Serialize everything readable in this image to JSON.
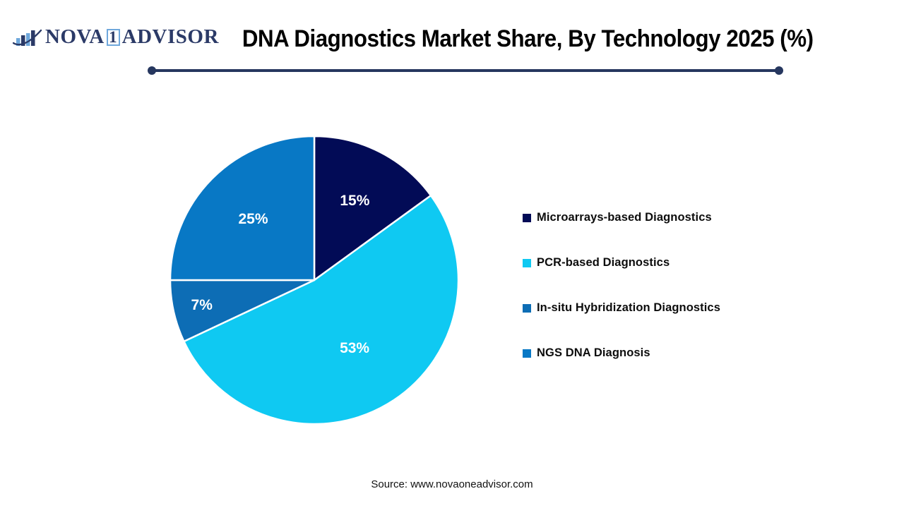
{
  "brand": {
    "logo_icon": "bar-chart-swoosh-icon",
    "wordmark_left": "NOVA",
    "wordmark_boxed": "1",
    "wordmark_right": "ADVISOR"
  },
  "header": {
    "title": "DNA Diagnostics Market Share, By Technology 2025 (%)"
  },
  "chart_data": {
    "type": "pie",
    "title": "DNA Diagnostics Market Share, By Technology 2025 (%)",
    "value_unit": "%",
    "start_angle_deg": 0,
    "direction": "clockwise",
    "legend_position": "right",
    "grid": false,
    "segments": [
      {
        "label": "Microarrays-based Diagnostics",
        "value": 15,
        "data_label": "15%",
        "color": "#020B56"
      },
      {
        "label": "PCR-based Diagnostics",
        "value": 53,
        "data_label": "53%",
        "color": "#0FC9F2"
      },
      {
        "label": "In-situ Hybridization Diagnostics",
        "value": 7,
        "data_label": "7%",
        "color": "#0D6DB5"
      },
      {
        "label": "NGS DNA Diagnosis",
        "value": 25,
        "data_label": "25%",
        "color": "#0878C5"
      }
    ]
  },
  "footer": {
    "source_text": "Source: www.novaoneadvisor.com"
  },
  "style": {
    "accent_line_color": "#26375F",
    "logo_navy": "#2B3A67",
    "logo_light_blue": "#6FA8DC",
    "slice_label_color": "#FFFFFF"
  }
}
